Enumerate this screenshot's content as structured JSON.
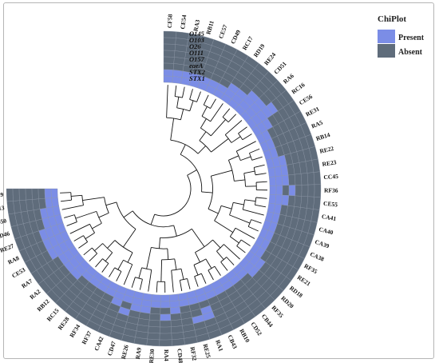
{
  "legend": {
    "title": "ChiPlot",
    "items": [
      {
        "label": "Present",
        "color": "#7b8de6"
      },
      {
        "label": "Absent",
        "color": "#5f6c7b"
      }
    ]
  },
  "tracks": [
    "O145",
    "O103",
    "O26",
    "O111",
    "O157",
    "eaeA",
    "STX2",
    "STX1"
  ],
  "leaves": [
    {
      "name": "CF58",
      "genes": [
        0,
        0,
        0,
        0,
        0,
        0,
        1,
        1
      ]
    },
    {
      "name": "CE54",
      "genes": [
        0,
        0,
        0,
        0,
        0,
        0,
        1,
        1
      ]
    },
    {
      "name": "RA3",
      "genes": [
        0,
        0,
        0,
        0,
        0,
        0,
        1,
        1
      ]
    },
    {
      "name": "RB11",
      "genes": [
        0,
        0,
        0,
        0,
        0,
        0,
        1,
        1
      ]
    },
    {
      "name": "CE57",
      "genes": [
        0,
        0,
        0,
        0,
        0,
        0,
        1,
        1
      ]
    },
    {
      "name": "CD49",
      "genes": [
        0,
        0,
        0,
        0,
        0,
        0,
        1,
        1
      ]
    },
    {
      "name": "RC17",
      "genes": [
        0,
        0,
        0,
        0,
        0,
        0,
        1,
        1
      ]
    },
    {
      "name": "RD19",
      "genes": [
        0,
        0,
        0,
        0,
        0,
        1,
        1,
        1
      ]
    },
    {
      "name": "RE24",
      "genes": [
        0,
        0,
        0,
        0,
        0,
        1,
        1,
        1
      ]
    },
    {
      "name": "CD51",
      "genes": [
        0,
        0,
        0,
        0,
        1,
        1,
        1,
        1
      ]
    },
    {
      "name": "RA6",
      "genes": [
        0,
        0,
        0,
        0,
        1,
        1,
        1,
        1
      ]
    },
    {
      "name": "RC16",
      "genes": [
        0,
        0,
        0,
        1,
        1,
        1,
        1,
        1
      ]
    },
    {
      "name": "CE56",
      "genes": [
        0,
        0,
        0,
        0,
        0,
        1,
        1,
        1
      ]
    },
    {
      "name": "RE31",
      "genes": [
        0,
        0,
        0,
        0,
        0,
        0,
        1,
        1
      ]
    },
    {
      "name": "RA5",
      "genes": [
        0,
        0,
        0,
        0,
        0,
        0,
        1,
        1
      ]
    },
    {
      "name": "RB14",
      "genes": [
        0,
        0,
        0,
        0,
        0,
        0,
        1,
        1
      ]
    },
    {
      "name": "RE22",
      "genes": [
        0,
        0,
        0,
        0,
        0,
        1,
        1,
        1
      ]
    },
    {
      "name": "RE23",
      "genes": [
        0,
        0,
        0,
        0,
        0,
        1,
        1,
        1
      ]
    },
    {
      "name": "CC45",
      "genes": [
        0,
        0,
        0,
        0,
        0,
        1,
        1,
        1
      ]
    },
    {
      "name": "RF36",
      "genes": [
        0,
        0,
        0,
        0,
        1,
        0,
        1,
        1
      ]
    },
    {
      "name": "CE55",
      "genes": [
        0,
        0,
        0,
        0,
        0,
        1,
        1,
        1
      ]
    },
    {
      "name": "CA41",
      "genes": [
        0,
        0,
        0,
        0,
        0,
        0,
        1,
        1
      ]
    },
    {
      "name": "CA40",
      "genes": [
        0,
        0,
        0,
        0,
        0,
        0,
        1,
        1
      ]
    },
    {
      "name": "CA39",
      "genes": [
        0,
        0,
        0,
        0,
        0,
        0,
        1,
        1
      ]
    },
    {
      "name": "CA38",
      "genes": [
        0,
        0,
        0,
        0,
        0,
        0,
        1,
        1
      ]
    },
    {
      "name": "RF35",
      "genes": [
        0,
        0,
        0,
        0,
        0,
        0,
        1,
        1
      ]
    },
    {
      "name": "RE21",
      "genes": [
        0,
        0,
        0,
        0,
        0,
        0,
        1,
        1
      ]
    },
    {
      "name": "RD18",
      "genes": [
        0,
        0,
        0,
        0,
        0,
        1,
        1,
        1
      ]
    },
    {
      "name": "RD20",
      "genes": [
        0,
        0,
        0,
        0,
        0,
        1,
        1,
        1
      ]
    },
    {
      "name": "RF35",
      "genes": [
        0,
        0,
        0,
        0,
        0,
        0,
        1,
        1
      ]
    },
    {
      "name": "CB44",
      "genes": [
        0,
        0,
        0,
        0,
        0,
        0,
        1,
        1
      ]
    },
    {
      "name": "CD52",
      "genes": [
        0,
        0,
        0,
        0,
        0,
        0,
        1,
        1
      ]
    },
    {
      "name": "RB10",
      "genes": [
        0,
        0,
        0,
        0,
        0,
        0,
        1,
        1
      ]
    },
    {
      "name": "CB43",
      "genes": [
        0,
        0,
        0,
        0,
        0,
        0,
        1,
        1
      ]
    },
    {
      "name": "RA1",
      "genes": [
        0,
        0,
        0,
        1,
        1,
        0,
        1,
        1
      ]
    },
    {
      "name": "RE25",
      "genes": [
        0,
        0,
        0,
        1,
        0,
        0,
        1,
        1
      ]
    },
    {
      "name": "RF32",
      "genes": [
        0,
        0,
        0,
        0,
        0,
        0,
        1,
        1
      ]
    },
    {
      "name": "CD48",
      "genes": [
        0,
        0,
        0,
        0,
        0,
        1,
        1,
        1
      ]
    },
    {
      "name": "RA4",
      "genes": [
        0,
        0,
        0,
        0,
        1,
        0,
        1,
        1
      ]
    },
    {
      "name": "RE30",
      "genes": [
        0,
        0,
        0,
        0,
        0,
        0,
        1,
        1
      ]
    },
    {
      "name": "RA9",
      "genes": [
        0,
        0,
        0,
        0,
        0,
        1,
        1,
        1
      ]
    },
    {
      "name": "RE26",
      "genes": [
        0,
        0,
        0,
        0,
        0,
        1,
        1,
        1
      ]
    },
    {
      "name": "CD47",
      "genes": [
        0,
        0,
        0,
        0,
        1,
        0,
        1,
        1
      ]
    },
    {
      "name": "CA42",
      "genes": [
        0,
        0,
        0,
        0,
        0,
        1,
        1,
        1
      ]
    },
    {
      "name": "RF37",
      "genes": [
        0,
        0,
        0,
        0,
        0,
        0,
        1,
        1
      ]
    },
    {
      "name": "RF34",
      "genes": [
        0,
        0,
        0,
        0,
        0,
        0,
        1,
        1
      ]
    },
    {
      "name": "RE28",
      "genes": [
        0,
        0,
        0,
        0,
        0,
        0,
        1,
        1
      ]
    },
    {
      "name": "RC15",
      "genes": [
        0,
        0,
        0,
        0,
        0,
        0,
        1,
        1
      ]
    },
    {
      "name": "RB12",
      "genes": [
        0,
        0,
        0,
        0,
        0,
        1,
        1,
        1
      ]
    },
    {
      "name": "RA2",
      "genes": [
        0,
        0,
        0,
        0,
        0,
        1,
        1,
        1
      ]
    },
    {
      "name": "RA7",
      "genes": [
        0,
        0,
        0,
        0,
        0,
        1,
        1,
        1
      ]
    },
    {
      "name": "CE53",
      "genes": [
        0,
        0,
        0,
        0,
        1,
        1,
        1,
        1
      ]
    },
    {
      "name": "RA8",
      "genes": [
        0,
        0,
        0,
        0,
        1,
        1,
        1,
        1
      ]
    },
    {
      "name": "RE27",
      "genes": [
        0,
        0,
        0,
        0,
        1,
        1,
        1,
        1
      ]
    },
    {
      "name": "CD46",
      "genes": [
        0,
        0,
        0,
        0,
        0,
        1,
        1,
        1
      ]
    },
    {
      "name": "CD50",
      "genes": [
        0,
        0,
        0,
        0,
        0,
        1,
        1,
        1
      ]
    },
    {
      "name": "RB13",
      "genes": [
        0,
        0,
        0,
        0,
        0,
        0,
        1,
        1
      ]
    },
    {
      "name": "RE29",
      "genes": [
        0,
        0,
        0,
        0,
        0,
        0,
        1,
        1
      ]
    }
  ]
}
